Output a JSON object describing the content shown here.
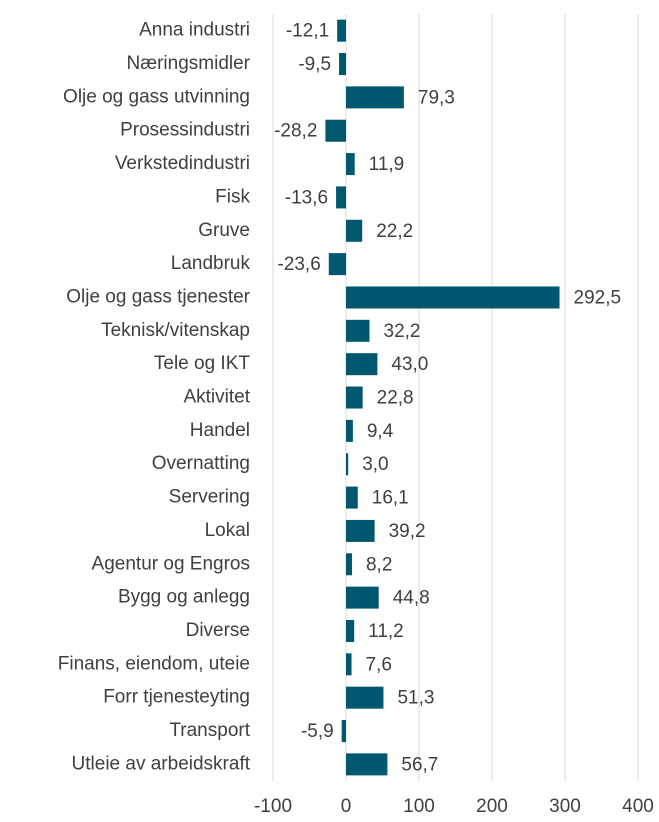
{
  "chart_data": {
    "type": "barh",
    "categories": [
      "Anna industri",
      "Næringsmidler",
      "Olje og gass utvinning",
      "Prosessindustri",
      "Verkstedindustri",
      "Fisk",
      "Gruve",
      "Landbruk",
      "Olje og gass tjenester",
      "Teknisk/vitenskap",
      "Tele og IKT",
      "Aktivitet",
      "Handel",
      "Overnatting",
      "Servering",
      "Lokal",
      "Agentur og Engros",
      "Bygg og anlegg",
      "Diverse",
      "Finans, eiendom, uteie",
      "Forr tjenesteyting",
      "Transport",
      "Utleie av arbeidskraft"
    ],
    "values": [
      -12.1,
      -9.5,
      79.3,
      -28.2,
      11.9,
      -13.6,
      22.2,
      -23.6,
      292.5,
      32.2,
      43.0,
      22.8,
      9.4,
      3.0,
      16.1,
      39.2,
      8.2,
      44.8,
      11.2,
      7.6,
      51.3,
      -5.9,
      56.7
    ],
    "value_labels": [
      "-12,1",
      "-9,5",
      "79,3",
      "-28,2",
      "11,9",
      "-13,6",
      "22,2",
      "-23,6",
      "292,5",
      "32,2",
      "43,0",
      "22,8",
      "9,4",
      "3,0",
      "16,1",
      "39,2",
      "8,2",
      "44,8",
      "11,2",
      "7,6",
      "51,3",
      "-5,9",
      "56,7"
    ],
    "color": "#00586f",
    "xlim": [
      -100,
      400
    ],
    "xticks": [
      -100,
      0,
      100,
      200,
      300,
      400
    ],
    "grid": true
  }
}
